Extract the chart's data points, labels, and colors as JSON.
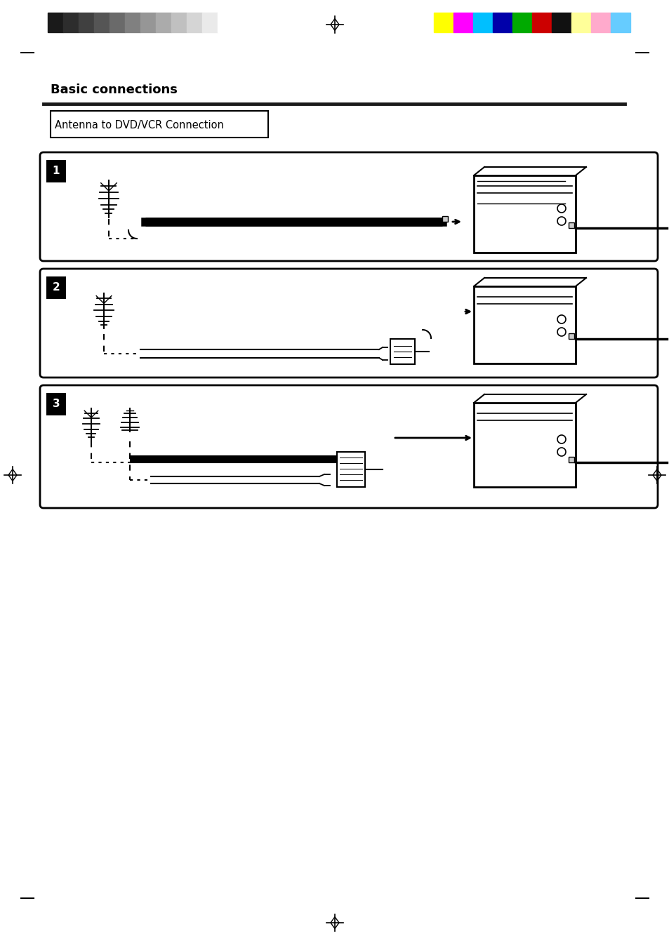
{
  "page_width": 9.54,
  "page_height": 13.51,
  "bg_color": "#ffffff",
  "grayscale_colors": [
    "#1a1a1a",
    "#2d2d2d",
    "#404040",
    "#555555",
    "#6a6a6a",
    "#808080",
    "#969696",
    "#ababab",
    "#c0c0c0",
    "#d5d5d5",
    "#eaeaea",
    "#ffffff"
  ],
  "color_bars": [
    "#ffff00",
    "#ff00ff",
    "#00bfff",
    "#0000aa",
    "#00aa00",
    "#cc0000",
    "#111111",
    "#ffff99",
    "#ffaacc",
    "#66ccff"
  ],
  "title_text": "Antenna to DVD/VCR Connection",
  "box1_label": "1",
  "box2_label": "2",
  "box3_label": "3",
  "section_title": "Basic connections"
}
